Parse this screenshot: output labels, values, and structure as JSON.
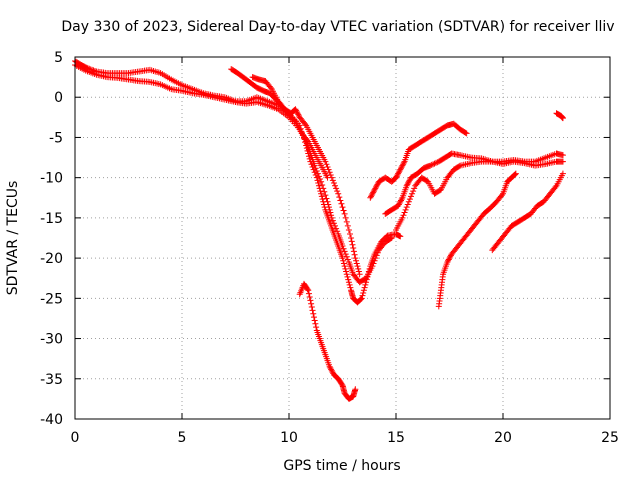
{
  "chart_data": {
    "type": "scatter",
    "title": "Day 330 of 2023, Sidereal Day-to-day VTEC variation (SDTVAR) for receiver lliv",
    "xlabel": "GPS time / hours",
    "ylabel": "SDTVAR / TECUs",
    "xlim": [
      0,
      25
    ],
    "ylim": [
      -40,
      5
    ],
    "xticks": [
      0,
      5,
      10,
      15,
      20,
      25
    ],
    "yticks": [
      5,
      0,
      -5,
      -10,
      -15,
      -20,
      -25,
      -30,
      -35,
      -40
    ],
    "grid": true,
    "marker": "plus",
    "color": "#ff0000",
    "series": [
      {
        "values": [
          [
            0.0,
            4.5
          ],
          [
            0.3,
            4.0
          ],
          [
            0.6,
            3.6
          ],
          [
            1.0,
            3.2
          ],
          [
            1.5,
            3.0
          ],
          [
            2.0,
            3.0
          ],
          [
            2.5,
            3.0
          ],
          [
            3.0,
            3.2
          ],
          [
            3.5,
            3.4
          ],
          [
            4.0,
            3.0
          ],
          [
            4.5,
            2.2
          ],
          [
            5.0,
            1.5
          ],
          [
            5.5,
            1.0
          ],
          [
            6.0,
            0.5
          ],
          [
            6.5,
            0.2
          ],
          [
            7.0,
            0.0
          ],
          [
            7.5,
            -0.5
          ],
          [
            8.0,
            -0.5
          ],
          [
            8.5,
            0.0
          ],
          [
            9.0,
            -0.5
          ],
          [
            9.5,
            -1.0
          ],
          [
            10.0,
            -2.0
          ],
          [
            10.5,
            -3.5
          ],
          [
            10.8,
            -6.0
          ],
          [
            11.0,
            -8.0
          ],
          [
            11.3,
            -10.0
          ],
          [
            11.5,
            -12.0
          ],
          [
            11.7,
            -14.0
          ],
          [
            11.9,
            -15.5
          ],
          [
            12.1,
            -17.0
          ],
          [
            12.3,
            -18.5
          ],
          [
            12.5,
            -20.0
          ],
          [
            12.7,
            -22.0
          ],
          [
            12.9,
            -24.0
          ],
          [
            13.0,
            -25.0
          ],
          [
            13.2,
            -25.5
          ],
          [
            13.4,
            -25.0
          ],
          [
            13.6,
            -23.0
          ],
          [
            13.8,
            -21.0
          ],
          [
            14.0,
            -19.5
          ],
          [
            14.3,
            -18.0
          ],
          [
            14.6,
            -17.2
          ],
          [
            15.0,
            -17.0
          ],
          [
            15.2,
            -17.3
          ]
        ]
      },
      {
        "values": [
          [
            0.0,
            4.0
          ],
          [
            0.5,
            3.3
          ],
          [
            1.0,
            2.8
          ],
          [
            1.5,
            2.5
          ],
          [
            2.0,
            2.4
          ],
          [
            2.5,
            2.2
          ],
          [
            3.0,
            2.0
          ],
          [
            3.5,
            1.9
          ],
          [
            4.0,
            1.6
          ],
          [
            4.5,
            1.0
          ],
          [
            5.0,
            0.8
          ],
          [
            5.5,
            0.5
          ],
          [
            6.0,
            0.3
          ],
          [
            6.5,
            0.0
          ],
          [
            7.0,
            -0.3
          ],
          [
            7.5,
            -0.6
          ],
          [
            8.0,
            -0.8
          ],
          [
            8.5,
            -0.6
          ],
          [
            9.0,
            -1.0
          ],
          [
            9.5,
            -1.5
          ],
          [
            10.0,
            -2.5
          ],
          [
            10.5,
            -4.0
          ],
          [
            10.8,
            -5.5
          ],
          [
            11.0,
            -7.0
          ],
          [
            11.2,
            -8.5
          ],
          [
            11.5,
            -10.5
          ],
          [
            11.8,
            -13.0
          ],
          [
            12.0,
            -15.0
          ],
          [
            12.3,
            -17.0
          ],
          [
            12.5,
            -18.5
          ],
          [
            12.8,
            -20.5
          ],
          [
            13.0,
            -22.0
          ],
          [
            13.3,
            -23.0
          ],
          [
            13.6,
            -22.5
          ],
          [
            13.9,
            -21.0
          ],
          [
            14.2,
            -19.0
          ],
          [
            14.5,
            -18.0
          ],
          [
            14.8,
            -17.5
          ]
        ]
      },
      {
        "values": [
          [
            7.3,
            3.5
          ],
          [
            7.6,
            3.0
          ],
          [
            7.9,
            2.4
          ],
          [
            8.2,
            1.8
          ],
          [
            8.5,
            1.2
          ],
          [
            8.8,
            0.8
          ],
          [
            9.1,
            0.5
          ],
          [
            9.4,
            -0.3
          ],
          [
            9.7,
            -1.2
          ],
          [
            10.0,
            -2.2
          ],
          [
            10.3,
            -3.0
          ],
          [
            10.6,
            -4.5
          ],
          [
            10.9,
            -5.5
          ],
          [
            11.2,
            -7.0
          ],
          [
            11.5,
            -8.5
          ],
          [
            11.8,
            -10.0
          ]
        ]
      },
      {
        "values": [
          [
            8.3,
            2.5
          ],
          [
            8.6,
            2.2
          ],
          [
            8.9,
            2.0
          ],
          [
            9.2,
            1.0
          ],
          [
            9.5,
            -0.5
          ],
          [
            9.8,
            -1.5
          ],
          [
            10.1,
            -2.0
          ],
          [
            10.3,
            -1.5
          ],
          [
            10.5,
            -2.5
          ],
          [
            10.8,
            -3.5
          ],
          [
            11.1,
            -5.0
          ],
          [
            11.4,
            -6.5
          ],
          [
            11.7,
            -8.0
          ],
          [
            12.0,
            -10.0
          ],
          [
            12.3,
            -12.0
          ],
          [
            12.6,
            -14.5
          ],
          [
            12.9,
            -17.5
          ],
          [
            13.1,
            -20.0
          ],
          [
            13.3,
            -22.0
          ]
        ]
      },
      {
        "values": [
          [
            10.5,
            -24.5
          ],
          [
            10.7,
            -23.2
          ],
          [
            10.9,
            -24.0
          ],
          [
            11.1,
            -26.5
          ],
          [
            11.3,
            -29.0
          ],
          [
            11.5,
            -30.5
          ],
          [
            11.7,
            -32.0
          ],
          [
            11.9,
            -33.5
          ],
          [
            12.1,
            -34.5
          ],
          [
            12.3,
            -35.0
          ],
          [
            12.5,
            -35.8
          ],
          [
            12.6,
            -36.8
          ],
          [
            12.8,
            -37.5
          ],
          [
            13.0,
            -37.2
          ],
          [
            13.1,
            -36.3
          ]
        ]
      },
      {
        "values": [
          [
            13.8,
            -12.5
          ],
          [
            14.0,
            -11.5
          ],
          [
            14.2,
            -10.5
          ],
          [
            14.5,
            -10.0
          ],
          [
            14.8,
            -10.5
          ],
          [
            15.0,
            -10.0
          ],
          [
            15.2,
            -9.0
          ],
          [
            15.4,
            -8.0
          ],
          [
            15.6,
            -6.5
          ],
          [
            15.9,
            -6.0
          ],
          [
            16.2,
            -5.5
          ],
          [
            16.5,
            -5.0
          ],
          [
            16.8,
            -4.5
          ],
          [
            17.1,
            -4.0
          ],
          [
            17.4,
            -3.5
          ],
          [
            17.7,
            -3.3
          ],
          [
            18.0,
            -4.0
          ],
          [
            18.3,
            -4.5
          ]
        ]
      },
      {
        "values": [
          [
            14.5,
            -14.5
          ],
          [
            14.8,
            -14.0
          ],
          [
            15.1,
            -13.5
          ],
          [
            15.3,
            -12.5
          ],
          [
            15.5,
            -11.0
          ],
          [
            15.7,
            -10.0
          ],
          [
            16.0,
            -9.5
          ],
          [
            16.3,
            -8.8
          ],
          [
            16.6,
            -8.5
          ],
          [
            17.0,
            -8.0
          ],
          [
            17.3,
            -7.5
          ],
          [
            17.6,
            -7.0
          ],
          [
            18.0,
            -7.2
          ],
          [
            18.5,
            -7.5
          ],
          [
            19.0,
            -7.6
          ],
          [
            19.5,
            -8.0
          ],
          [
            20.0,
            -8.0
          ],
          [
            20.5,
            -7.8
          ],
          [
            21.0,
            -8.0
          ],
          [
            21.5,
            -8.0
          ],
          [
            22.0,
            -7.5
          ],
          [
            22.5,
            -7.0
          ],
          [
            22.8,
            -7.2
          ]
        ]
      },
      {
        "values": [
          [
            15.0,
            -16.5
          ],
          [
            15.3,
            -15.0
          ],
          [
            15.6,
            -13.0
          ],
          [
            15.9,
            -11.0
          ],
          [
            16.2,
            -10.0
          ],
          [
            16.5,
            -10.5
          ],
          [
            16.8,
            -12.0
          ],
          [
            17.1,
            -11.5
          ],
          [
            17.4,
            -10.0
          ],
          [
            17.7,
            -9.0
          ],
          [
            18.0,
            -8.5
          ],
          [
            18.5,
            -8.2
          ],
          [
            19.0,
            -8.0
          ],
          [
            19.5,
            -8.0
          ],
          [
            20.0,
            -8.3
          ],
          [
            20.5,
            -8.0
          ],
          [
            21.0,
            -8.2
          ],
          [
            21.5,
            -8.5
          ],
          [
            22.0,
            -8.3
          ],
          [
            22.5,
            -8.0
          ],
          [
            22.8,
            -8.0
          ]
        ]
      },
      {
        "values": [
          [
            17.0,
            -26.0
          ],
          [
            17.1,
            -24.0
          ],
          [
            17.2,
            -22.0
          ],
          [
            17.4,
            -20.5
          ],
          [
            17.6,
            -19.5
          ],
          [
            17.9,
            -18.5
          ],
          [
            18.2,
            -17.5
          ],
          [
            18.5,
            -16.5
          ],
          [
            18.8,
            -15.5
          ],
          [
            19.1,
            -14.5
          ],
          [
            19.4,
            -13.8
          ],
          [
            19.7,
            -13.0
          ],
          [
            20.0,
            -12.0
          ],
          [
            20.2,
            -10.5
          ],
          [
            20.4,
            -10.0
          ],
          [
            20.6,
            -9.5
          ]
        ]
      },
      {
        "values": [
          [
            19.5,
            -19.0
          ],
          [
            19.8,
            -18.0
          ],
          [
            20.1,
            -17.0
          ],
          [
            20.4,
            -16.0
          ],
          [
            20.7,
            -15.5
          ],
          [
            21.0,
            -15.0
          ],
          [
            21.3,
            -14.5
          ],
          [
            21.6,
            -13.5
          ],
          [
            21.9,
            -13.0
          ],
          [
            22.2,
            -12.0
          ],
          [
            22.5,
            -11.0
          ],
          [
            22.8,
            -9.5
          ]
        ]
      },
      {
        "values": [
          [
            22.5,
            -2.0
          ],
          [
            22.7,
            -2.3
          ],
          [
            22.8,
            -2.6
          ]
        ]
      }
    ]
  }
}
